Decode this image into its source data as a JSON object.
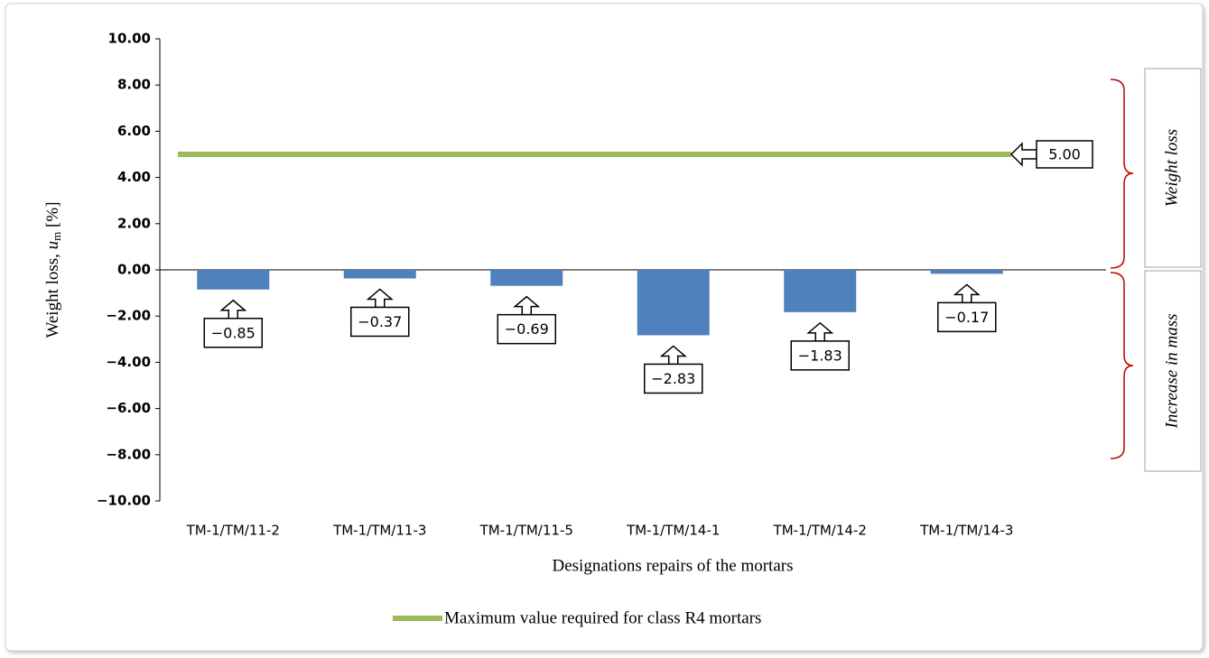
{
  "chart_data": {
    "type": "bar",
    "ylabel": {
      "prefix": "Weight loss, ",
      "symbol": "u",
      "subscript": "m",
      "suffix": " [%]"
    },
    "xlabel": "Designations repairs of the mortars",
    "categories": [
      "TM-1/TM/11-2",
      "TM-1/TM/11-3",
      "TM-1/TM/11-5",
      "TM-1/TM/14-1",
      "TM-1/TM/14-2",
      "TM-1/TM/14-3"
    ],
    "values": [
      -0.85,
      -0.37,
      -0.69,
      -2.83,
      -1.83,
      -0.17
    ],
    "value_labels": [
      "−0.85",
      "−0.37",
      "−0.69",
      "−2.83",
      "−1.83",
      "−0.17"
    ],
    "color": "#4f81bd",
    "series": [
      {
        "name": "Maximum value required for class R4 mortars",
        "color": "#9bbb59",
        "values": [
          5,
          5,
          5,
          5,
          5,
          5
        ]
      }
    ],
    "annotations": [
      {
        "text": "5.00",
        "value": 5
      }
    ],
    "side_labels": [
      "Weight loss",
      "Increase in mass"
    ],
    "ylim": [
      -10,
      10
    ],
    "yticks": [
      {
        "value": -10,
        "label": "−10.00"
      },
      {
        "value": -8,
        "label": "−8.00"
      },
      {
        "value": -6,
        "label": "−6.00"
      },
      {
        "value": -4,
        "label": "−4.00"
      },
      {
        "value": -2,
        "label": "−2.00"
      },
      {
        "value": 0,
        "label": "0.00"
      },
      {
        "value": 2,
        "label": "2.00"
      },
      {
        "value": 4,
        "label": "4.00"
      },
      {
        "value": 6,
        "label": "6.00"
      },
      {
        "value": 8,
        "label": "8.00"
      },
      {
        "value": 10,
        "label": "10.00"
      }
    ],
    "grid": false
  }
}
